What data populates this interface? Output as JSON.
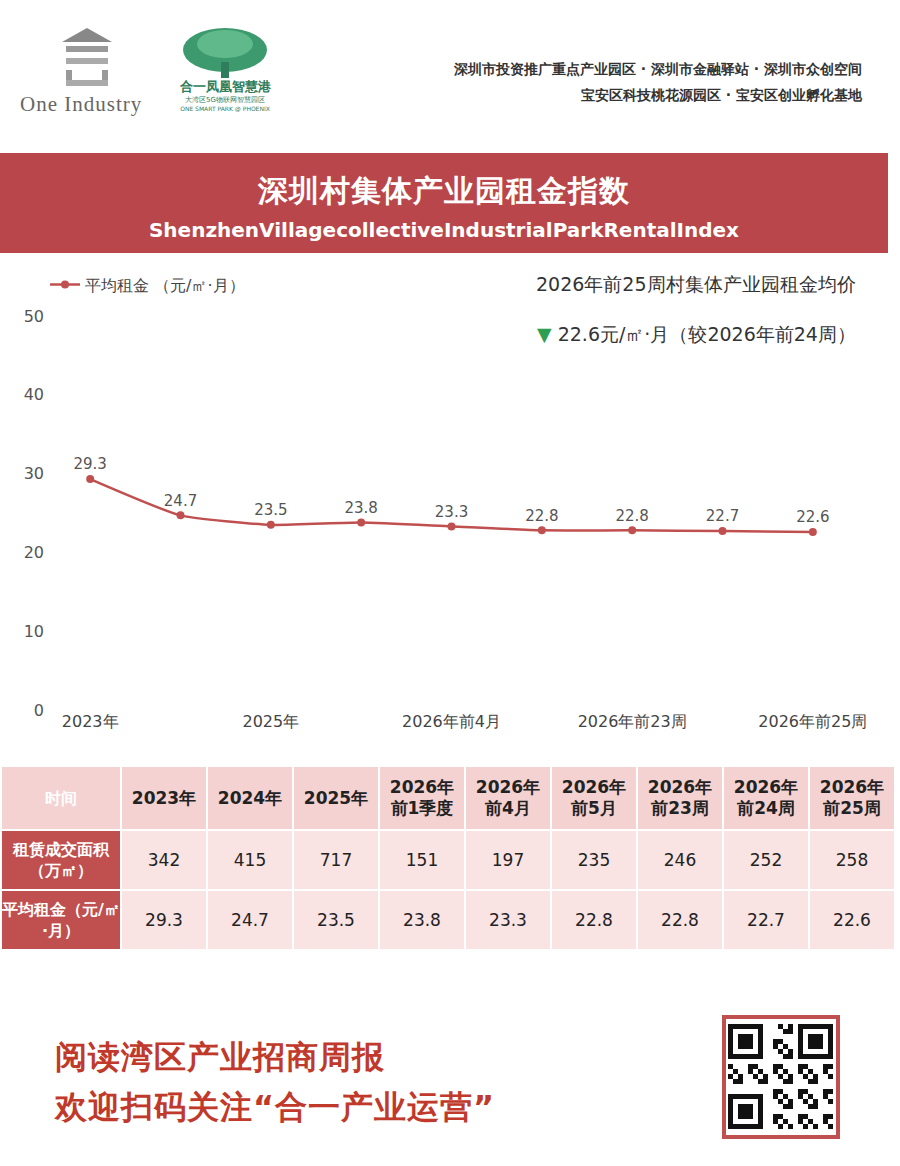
{
  "header": {
    "logo_left": "One Industry",
    "logo_right": {
      "name": "合一凤凰智慧港",
      "tagline": "大湾区5G物联网智慧园区",
      "english": "ONE SMART PARK @ PHOENIX"
    },
    "honors": [
      "深圳市投资推广重点产业园区 · 深圳市金融驿站 · 深圳市众创空间",
      "宝安区科技桃花源园区 · 宝安区创业孵化基地"
    ]
  },
  "banner": {
    "title": "深圳村集体产业园租金指数",
    "subtitle": "ShenzhenVillagecollectiveIndustrialParkRentalIndex"
  },
  "chart_data": {
    "type": "line",
    "categories": [
      "2023年",
      null,
      "2025年",
      null,
      "2026年前4月",
      null,
      "2026年前23周",
      null,
      "2026年前25周"
    ],
    "series": [
      {
        "name": "平均租金 （元/㎡·月）",
        "color": "#c0504f",
        "marker": "circle",
        "values": [
          29.3,
          24.7,
          23.5,
          23.8,
          23.3,
          22.8,
          22.8,
          22.7,
          22.6
        ]
      }
    ],
    "ylim": [
      0,
      50
    ],
    "yticks": [
      0,
      10,
      20,
      30,
      40,
      50
    ],
    "grid": false,
    "legend": "upper left",
    "data_labels": true,
    "annotations": [
      {
        "text": "2026年前25周村集体产业园租金均价"
      },
      {
        "symbol": "▼",
        "color": "#2e9e4f",
        "text": "22.6元/㎡·月（较2026年前24周）"
      }
    ]
  },
  "table": {
    "header": [
      "时间",
      "2023年",
      "2024年",
      "2025年",
      "2026年前1季度",
      "2026年前4月",
      "2026年前5月",
      "2026年前23周",
      "2026年前24周",
      "2026年前25周"
    ],
    "rows": [
      [
        "租赁成交面积（万㎡）",
        342,
        415,
        717,
        151,
        197,
        235,
        246,
        252,
        258
      ],
      [
        "平均租金（元/㎡·月）",
        29.3,
        24.7,
        23.5,
        23.8,
        23.3,
        22.8,
        22.8,
        22.7,
        22.6
      ]
    ]
  },
  "footer": {
    "lines": [
      "阅读湾区产业招商周报",
      "欢迎扫码关注“合一产业运营”"
    ]
  }
}
